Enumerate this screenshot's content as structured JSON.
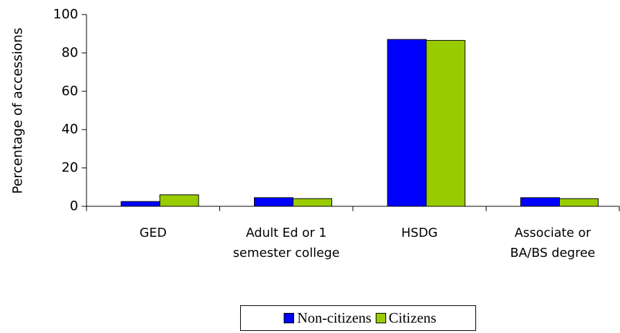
{
  "chart_data": {
    "type": "bar",
    "y_label": "Percentage of accessions",
    "categories": [
      "GED",
      "Adult Ed or 1 semester college",
      "HSDG",
      "Associate or BA/BS degree"
    ],
    "series": [
      {
        "name": "Non-citizens",
        "color": "#0000ff",
        "values": [
          2.5,
          4.5,
          87,
          4.5
        ]
      },
      {
        "name": "Citizens",
        "color": "#99cc00",
        "values": [
          6,
          4,
          86.5,
          4
        ]
      }
    ],
    "ylim": [
      0,
      100
    ],
    "yticks": [
      0,
      20,
      40,
      60,
      80,
      100
    ],
    "legend": "bottom"
  }
}
